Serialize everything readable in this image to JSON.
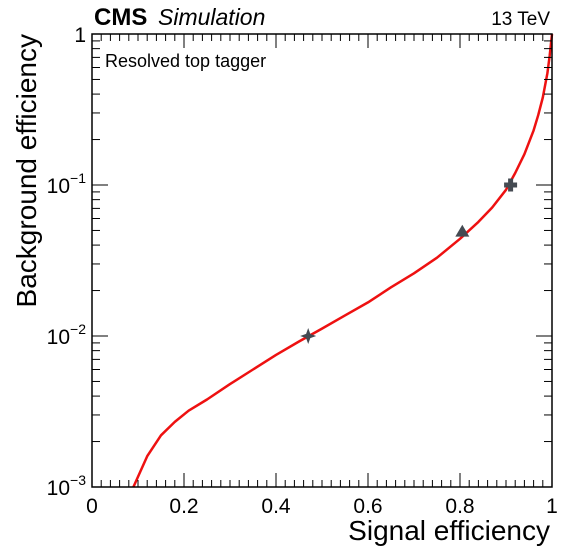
{
  "header": {
    "experiment": "CMS",
    "status": "Simulation",
    "energy": "13 TeV"
  },
  "chart_data": {
    "type": "line",
    "title": "",
    "xlabel": "Signal efficiency",
    "ylabel": "Background efficiency",
    "xlim": [
      0,
      1
    ],
    "ylim": [
      0.001,
      1
    ],
    "yscale": "log",
    "grid": false,
    "annotation": "Resolved top tagger",
    "x_ticks": [
      {
        "value": 0,
        "label": "0"
      },
      {
        "value": 0.2,
        "label": "0.2"
      },
      {
        "value": 0.4,
        "label": "0.4"
      },
      {
        "value": 0.6,
        "label": "0.6"
      },
      {
        "value": 0.8,
        "label": "0.8"
      },
      {
        "value": 1,
        "label": "1"
      }
    ],
    "y_ticks": [
      {
        "value": 0.001,
        "base": "10",
        "exponent": "−3"
      },
      {
        "value": 0.01,
        "base": "10",
        "exponent": "−2"
      },
      {
        "value": 0.1,
        "base": "10",
        "exponent": "−1"
      },
      {
        "value": 1,
        "base": "1",
        "exponent": ""
      }
    ],
    "series": [
      {
        "color": "#ee1111",
        "x": [
          0.09,
          0.12,
          0.15,
          0.18,
          0.21,
          0.25,
          0.3,
          0.35,
          0.4,
          0.45,
          0.5,
          0.55,
          0.6,
          0.65,
          0.7,
          0.75,
          0.8,
          0.84,
          0.87,
          0.9,
          0.92,
          0.94,
          0.96,
          0.97,
          0.98,
          0.99,
          0.995,
          1.0
        ],
        "y": [
          0.001,
          0.0016,
          0.0022,
          0.0027,
          0.0032,
          0.0038,
          0.0048,
          0.006,
          0.0075,
          0.0092,
          0.0112,
          0.0137,
          0.0167,
          0.021,
          0.026,
          0.033,
          0.044,
          0.057,
          0.071,
          0.093,
          0.12,
          0.16,
          0.23,
          0.29,
          0.38,
          0.55,
          0.72,
          1.0
        ]
      }
    ],
    "markers": [
      {
        "x": 0.47,
        "y": 0.01,
        "shape": "star",
        "color": "#444a52"
      },
      {
        "x": 0.805,
        "y": 0.049,
        "shape": "triangle",
        "color": "#444a52"
      },
      {
        "x": 0.91,
        "y": 0.1,
        "shape": "cross",
        "color": "#444a52"
      }
    ]
  }
}
